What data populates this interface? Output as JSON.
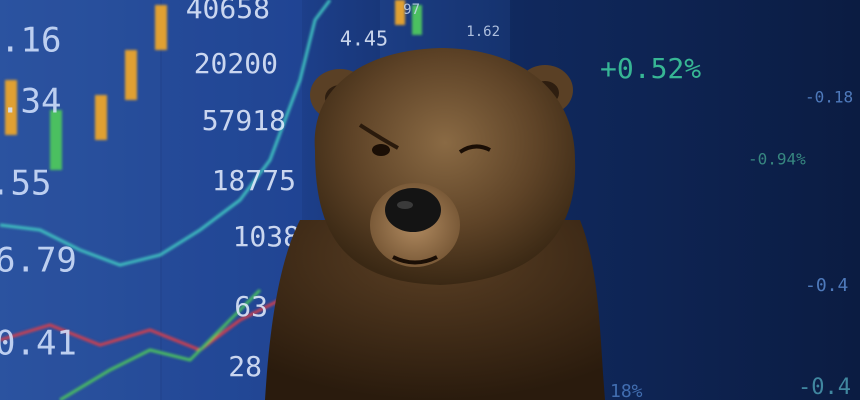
{
  "tickers": [
    {
      "text": ".16"
    },
    {
      "text": ".34"
    },
    {
      "text": ".55"
    },
    {
      "text": "6.79"
    },
    {
      "text": "0.41"
    },
    {
      "text": "40658"
    },
    {
      "text": "20200"
    },
    {
      "text": "57918"
    },
    {
      "text": "18775"
    },
    {
      "text": "1038"
    },
    {
      "text": "63"
    },
    {
      "text": "28"
    },
    {
      "text": "4.45"
    },
    {
      "text": "97"
    },
    {
      "text": "1.62"
    },
    {
      "text": "+0.52%"
    },
    {
      "text": "-0.18"
    },
    {
      "text": "-0.94%"
    },
    {
      "text": "-0.4"
    },
    {
      "text": "-0.4"
    },
    {
      "text": "18%"
    }
  ]
}
